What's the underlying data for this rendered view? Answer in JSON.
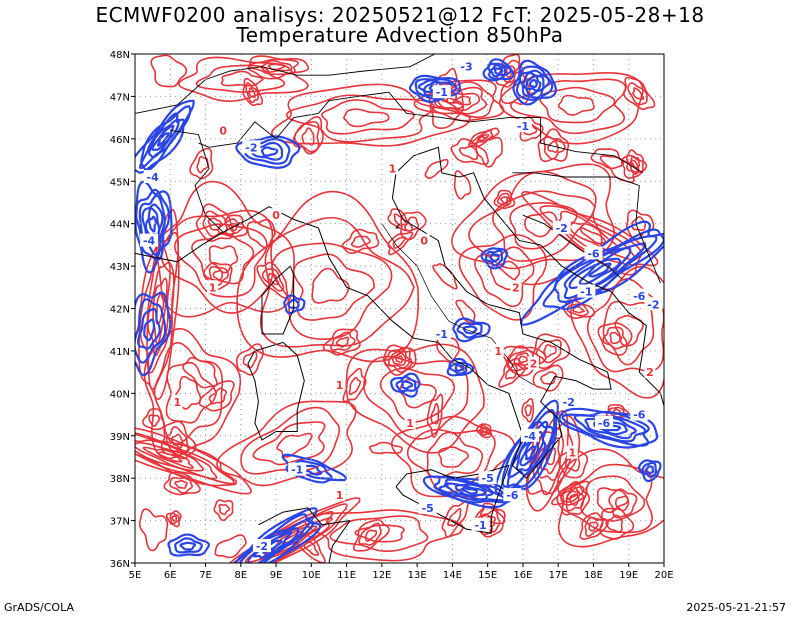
{
  "title_line1": "ECMWF0200 analisys: 20250521@12 FcT: 2025-05-28+18",
  "title_line2": "Temperature Advection 850hPa",
  "footer_left": "GrADS/COLA",
  "footer_right": "2025-05-21-21:57",
  "colors": {
    "positive": "#e8333a",
    "negative": "#2a45e6",
    "border": "#000000",
    "grid": "#999999"
  },
  "map": {
    "lon_range": [
      5,
      20
    ],
    "lat_range": [
      36,
      48
    ],
    "lon_ticks": [
      "5E",
      "6E",
      "7E",
      "8E",
      "9E",
      "10E",
      "11E",
      "12E",
      "13E",
      "14E",
      "15E",
      "16E",
      "17E",
      "18E",
      "19E",
      "20E"
    ],
    "lat_ticks": [
      "36N",
      "37N",
      "38N",
      "39N",
      "40N",
      "41N",
      "42N",
      "43N",
      "44N",
      "45N",
      "46N",
      "47N",
      "48N"
    ]
  },
  "contour_labels": [
    {
      "text": "-2",
      "lon": 8.3,
      "lat": 45.8,
      "color": "negative"
    },
    {
      "text": "-1",
      "lon": 13.7,
      "lat": 47.1,
      "color": "negative"
    },
    {
      "text": "-3",
      "lon": 14.4,
      "lat": 47.7,
      "color": "negative"
    },
    {
      "text": "-1",
      "lon": 16.0,
      "lat": 46.3,
      "color": "negative"
    },
    {
      "text": "-4",
      "lon": 5.5,
      "lat": 45.1,
      "color": "negative"
    },
    {
      "text": "-4",
      "lon": 5.4,
      "lat": 43.6,
      "color": "negative"
    },
    {
      "text": "-2",
      "lon": 17.1,
      "lat": 43.9,
      "color": "negative"
    },
    {
      "text": "-6",
      "lon": 18.0,
      "lat": 43.3,
      "color": "negative"
    },
    {
      "text": "-1",
      "lon": 17.8,
      "lat": 42.4,
      "color": "negative"
    },
    {
      "text": "-6",
      "lon": 19.3,
      "lat": 42.3,
      "color": "negative"
    },
    {
      "text": "-2",
      "lon": 19.7,
      "lat": 42.1,
      "color": "negative"
    },
    {
      "text": "-1",
      "lon": 13.7,
      "lat": 41.4,
      "color": "negative"
    },
    {
      "text": "-2",
      "lon": 17.3,
      "lat": 39.8,
      "color": "negative"
    },
    {
      "text": "-6",
      "lon": 18.3,
      "lat": 39.3,
      "color": "negative"
    },
    {
      "text": "-6",
      "lon": 19.3,
      "lat": 39.5,
      "color": "negative"
    },
    {
      "text": "-4",
      "lon": 16.2,
      "lat": 39.0,
      "color": "negative"
    },
    {
      "text": "-1",
      "lon": 9.6,
      "lat": 38.2,
      "color": "negative"
    },
    {
      "text": "-5",
      "lon": 13.3,
      "lat": 37.3,
      "color": "negative"
    },
    {
      "text": "-6",
      "lon": 15.7,
      "lat": 37.6,
      "color": "negative"
    },
    {
      "text": "-5",
      "lon": 15.0,
      "lat": 38.0,
      "color": "negative"
    },
    {
      "text": "-2",
      "lon": 8.6,
      "lat": 36.4,
      "color": "negative"
    },
    {
      "text": "-1",
      "lon": 14.8,
      "lat": 36.9,
      "color": "negative"
    },
    {
      "text": "0",
      "lon": 7.5,
      "lat": 46.2,
      "color": "positive"
    },
    {
      "text": "1",
      "lon": 7.2,
      "lat": 42.5,
      "color": "positive"
    },
    {
      "text": "0",
      "lon": 13.2,
      "lat": 43.6,
      "color": "positive"
    },
    {
      "text": "1",
      "lon": 15.3,
      "lat": 41.0,
      "color": "positive"
    },
    {
      "text": "2",
      "lon": 16.3,
      "lat": 40.7,
      "color": "positive"
    },
    {
      "text": "1",
      "lon": 10.8,
      "lat": 40.2,
      "color": "positive"
    },
    {
      "text": "1",
      "lon": 12.8,
      "lat": 39.3,
      "color": "positive"
    },
    {
      "text": "1",
      "lon": 17.4,
      "lat": 38.6,
      "color": "positive"
    },
    {
      "text": "2",
      "lon": 19.6,
      "lat": 40.5,
      "color": "positive"
    },
    {
      "text": "1",
      "lon": 6.2,
      "lat": 39.8,
      "color": "positive"
    },
    {
      "text": "0",
      "lon": 9.0,
      "lat": 44.2,
      "color": "positive"
    },
    {
      "text": "1",
      "lon": 10.8,
      "lat": 37.6,
      "color": "positive"
    },
    {
      "text": "2",
      "lon": 15.8,
      "lat": 42.5,
      "color": "positive"
    },
    {
      "text": "1",
      "lon": 12.3,
      "lat": 45.3,
      "color": "positive"
    }
  ]
}
